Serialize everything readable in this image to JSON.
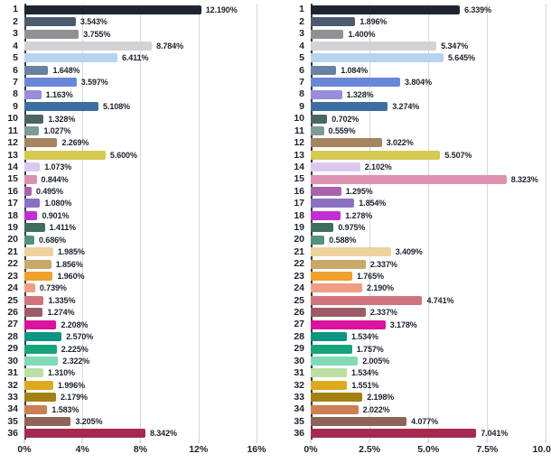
{
  "page": {
    "background": "#ffffff",
    "text_color": "#1c222c",
    "gridline_color": "#d8d8da",
    "axis_line_color": "#3a3d46"
  },
  "chart_data": [
    {
      "type": "bar",
      "orientation": "horizontal",
      "title": "",
      "xlabel": "",
      "ylabel": "",
      "grid": true,
      "legend": "none",
      "xlim": [
        0,
        16.75
      ],
      "categories": [
        "1",
        "2",
        "3",
        "4",
        "5",
        "6",
        "7",
        "8",
        "9",
        "10",
        "11",
        "12",
        "13",
        "14",
        "15",
        "16",
        "17",
        "18",
        "19",
        "20",
        "21",
        "22",
        "23",
        "24",
        "25",
        "26",
        "27",
        "28",
        "29",
        "30",
        "31",
        "32",
        "33",
        "34",
        "35",
        "36"
      ],
      "values": [
        12.19,
        3.543,
        3.755,
        8.784,
        6.411,
        1.648,
        3.597,
        1.163,
        5.108,
        1.328,
        1.027,
        2.269,
        5.6,
        1.073,
        0.844,
        0.495,
        1.08,
        0.901,
        1.411,
        0.686,
        1.985,
        1.856,
        1.96,
        0.739,
        1.335,
        1.274,
        2.208,
        2.57,
        2.225,
        2.322,
        1.31,
        1.996,
        2.179,
        1.583,
        3.205,
        8.342
      ],
      "labels": [
        "12.190%",
        "3.543%",
        "3.755%",
        "8.784%",
        "6.411%",
        "1.648%",
        "3.597%",
        "1.163%",
        "5.108%",
        "1.328%",
        "1.027%",
        "2.269%",
        "5.600%",
        "1.073%",
        "0.844%",
        "0.495%",
        "1.080%",
        "0.901%",
        "1.411%",
        "0.686%",
        "1.985%",
        "1.856%",
        "1.960%",
        "0.739%",
        "1.335%",
        "1.274%",
        "2.208%",
        "2.570%",
        "2.225%",
        "2.322%",
        "1.310%",
        "1.996%",
        "2.179%",
        "1.583%",
        "3.205%",
        "8.342%"
      ],
      "ticks": [
        {
          "value": 0,
          "label": "0%"
        },
        {
          "value": 4,
          "label": "4%"
        },
        {
          "value": 8,
          "label": "8%"
        },
        {
          "value": 12,
          "label": "12%"
        },
        {
          "value": 16,
          "label": "16%"
        }
      ],
      "bar_colors": [
        "#1e2530",
        "#4e5a6d",
        "#909095",
        "#d3d3d5",
        "#b7d3f1",
        "#68829f",
        "#6a86d9",
        "#988cdc",
        "#3d6ca1",
        "#4c6562",
        "#7f9b96",
        "#a5845f",
        "#d5ca52",
        "#d9c9f1",
        "#de90af",
        "#a963ab",
        "#8a71c3",
        "#c12fd3",
        "#3e6e5d",
        "#52917d",
        "#edd29c",
        "#c9a967",
        "#f0a02c",
        "#ef9e84",
        "#d0737e",
        "#9c5c67",
        "#da129e",
        "#0d9480",
        "#17a47c",
        "#80dab3",
        "#bcdfa3",
        "#dcaa1b",
        "#a48011",
        "#cb7f53",
        "#8c645a",
        "#a62a50"
      ]
    },
    {
      "type": "bar",
      "orientation": "horizontal",
      "title": "",
      "xlabel": "",
      "ylabel": "",
      "grid": true,
      "legend": "none",
      "xlim": [
        0,
        10.1
      ],
      "categories": [
        "1",
        "2",
        "3",
        "4",
        "5",
        "6",
        "7",
        "8",
        "9",
        "10",
        "11",
        "12",
        "13",
        "14",
        "15",
        "16",
        "17",
        "18",
        "19",
        "20",
        "21",
        "22",
        "23",
        "24",
        "25",
        "26",
        "27",
        "28",
        "29",
        "30",
        "31",
        "32",
        "33",
        "34",
        "35",
        "36"
      ],
      "values": [
        6.339,
        1.896,
        1.4,
        5.347,
        5.645,
        1.084,
        3.804,
        1.328,
        3.274,
        0.702,
        0.559,
        3.022,
        5.507,
        2.102,
        8.323,
        1.295,
        1.854,
        1.278,
        0.975,
        0.588,
        3.409,
        2.337,
        1.765,
        2.19,
        4.741,
        2.337,
        3.178,
        1.534,
        1.757,
        2.005,
        1.534,
        1.551,
        2.198,
        2.022,
        4.077,
        7.041
      ],
      "labels": [
        "6.339%",
        "1.896%",
        "1.400%",
        "5.347%",
        "5.645%",
        "1.084%",
        "3.804%",
        "1.328%",
        "3.274%",
        "0.702%",
        "0.559%",
        "3.022%",
        "5.507%",
        "2.102%",
        "8.323%",
        "1.295%",
        "1.854%",
        "1.278%",
        "0.975%",
        "0.588%",
        "3.409%",
        "2.337%",
        "1.765%",
        "2.190%",
        "4.741%",
        "2.337%",
        "3.178%",
        "1.534%",
        "1.757%",
        "2.005%",
        "1.534%",
        "1.551%",
        "2.198%",
        "2.022%",
        "4.077%",
        "7.041%"
      ],
      "ticks": [
        {
          "value": 0,
          "label": "0%"
        },
        {
          "value": 2.5,
          "label": "2.5%"
        },
        {
          "value": 5,
          "label": "5.0%"
        },
        {
          "value": 7.5,
          "label": "7.5%"
        },
        {
          "value": 10,
          "label": "10.0%"
        }
      ],
      "bar_colors": [
        "#1e2530",
        "#4e5a6d",
        "#909095",
        "#d3d3d5",
        "#b7d3f1",
        "#68829f",
        "#6a86d9",
        "#988cdc",
        "#3d6ca1",
        "#4c6562",
        "#7f9b96",
        "#a5845f",
        "#d5ca52",
        "#d9c9f1",
        "#de90af",
        "#a963ab",
        "#8a71c3",
        "#c12fd3",
        "#3e6e5d",
        "#52917d",
        "#edd29c",
        "#c9a967",
        "#f0a02c",
        "#ef9e84",
        "#d0737e",
        "#9c5c67",
        "#da129e",
        "#0d9480",
        "#17a47c",
        "#80dab3",
        "#bcdfa3",
        "#dcaa1b",
        "#a48011",
        "#cb7f53",
        "#8c645a",
        "#a62a50"
      ]
    }
  ]
}
